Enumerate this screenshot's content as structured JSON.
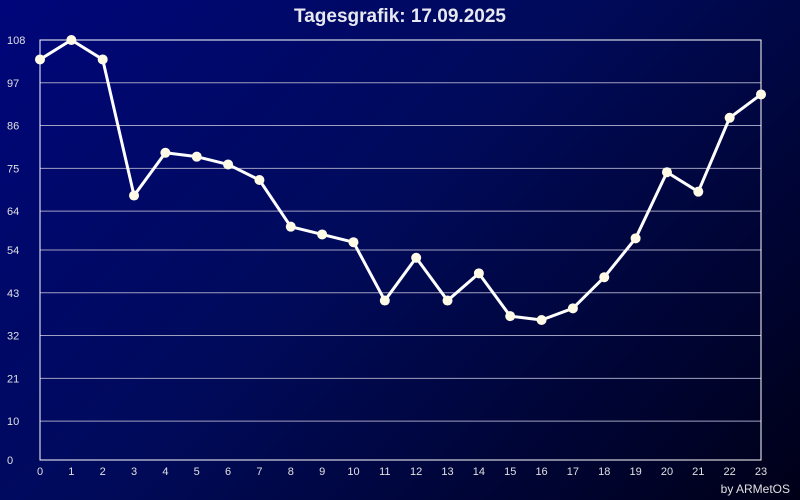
{
  "chart_data": {
    "type": "line",
    "title": "Tagesgrafik: 17.09.2025",
    "credit": "by ARMetOS",
    "x": [
      0,
      1,
      2,
      3,
      4,
      5,
      6,
      7,
      8,
      9,
      10,
      11,
      12,
      13,
      14,
      15,
      16,
      17,
      18,
      19,
      20,
      21,
      22,
      23
    ],
    "values": [
      103,
      108,
      103,
      68,
      79,
      78,
      76,
      72,
      60,
      58,
      56,
      41,
      52,
      41,
      48,
      37,
      36,
      39,
      47,
      57,
      74,
      69,
      88,
      94
    ],
    "ylim": [
      0,
      108
    ],
    "xlim": [
      0,
      23
    ],
    "yticks": [
      0,
      10,
      21,
      32,
      43,
      54,
      64,
      75,
      86,
      97,
      108
    ],
    "xticks": [
      "0",
      "1",
      "2",
      "3",
      "4",
      "5",
      "6",
      "7",
      "8",
      "9",
      "10",
      "11",
      "12",
      "13",
      "14",
      "15",
      "16",
      "17",
      "18",
      "19",
      "20",
      "21",
      "22",
      "23"
    ],
    "grid": true,
    "colors": {
      "line": "#ffffff",
      "marker": "#fffbe6",
      "grid": "#a0a0c0",
      "background": "#00067a"
    }
  }
}
